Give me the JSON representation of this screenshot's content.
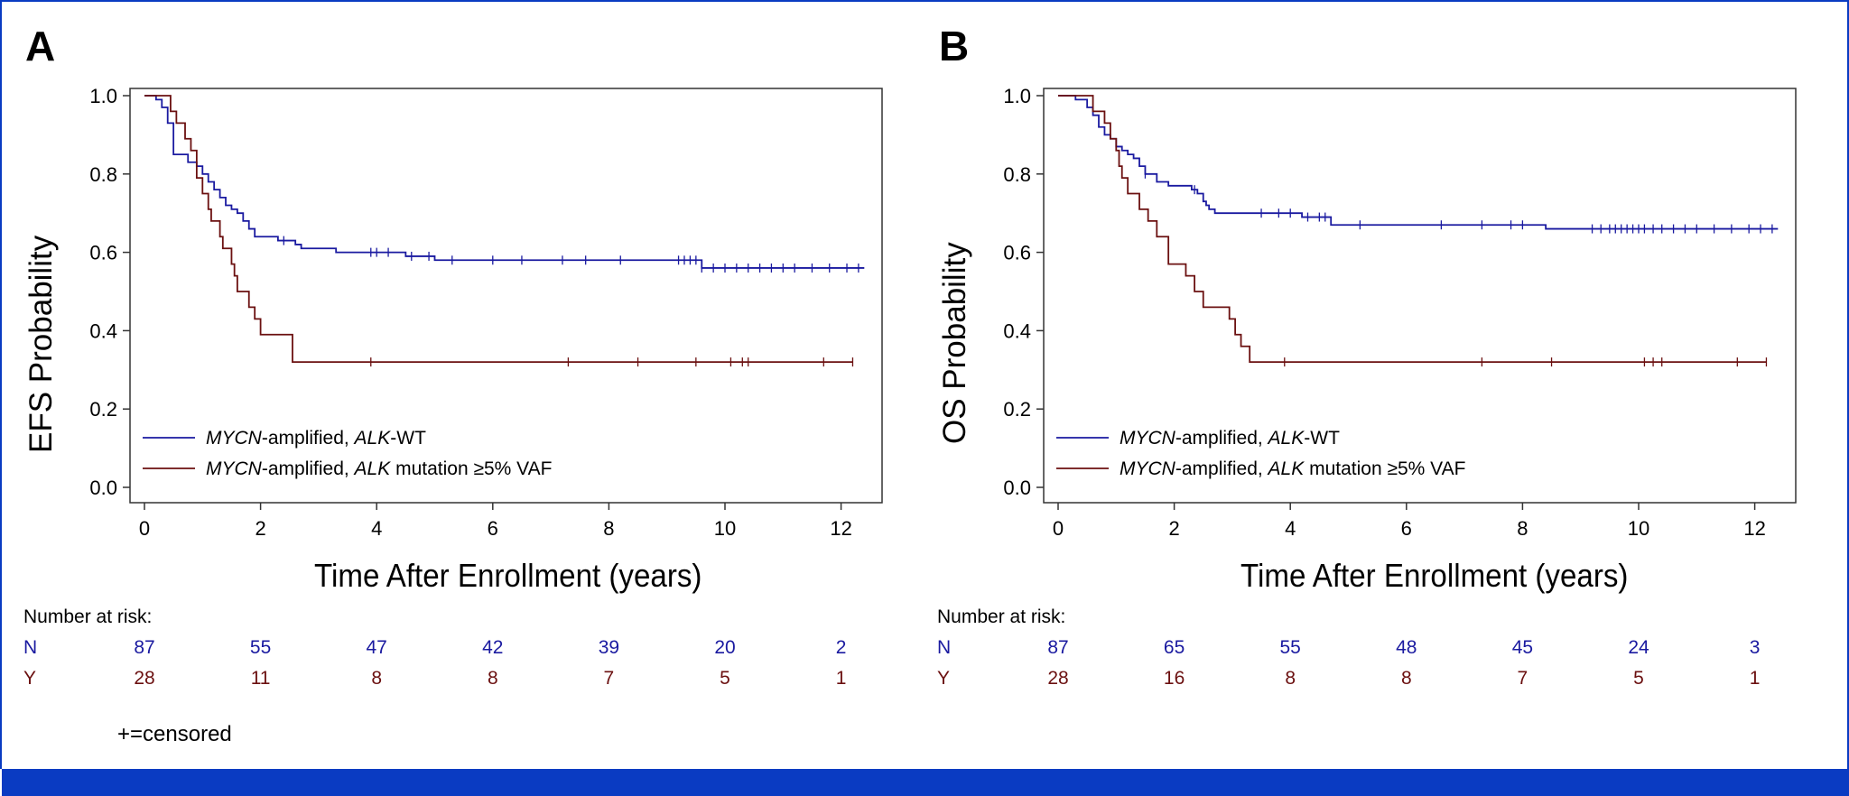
{
  "colors": {
    "border_blue": "#0a3bc2",
    "series_wt": "#1a1aa0",
    "series_mut": "#6b1010"
  },
  "censored_note": "+=censored",
  "chart_data": [
    {
      "type": "line",
      "panel_label": "A",
      "ylabel": "EFS Probability",
      "xlabel": "Time After Enrollment (years)",
      "xlim": [
        0,
        12.5
      ],
      "ylim": [
        0,
        1.0
      ],
      "xticks": [
        0,
        2,
        4,
        6,
        8,
        10,
        12
      ],
      "yticks": [
        "0.0",
        "0.2",
        "0.4",
        "0.6",
        "0.8",
        "1.0"
      ],
      "legend": [
        {
          "italic": "MYCN",
          "text1": "-amplified, ",
          "italic2": "ALK",
          "text2": "-WT",
          "color": "#1a1aa0"
        },
        {
          "italic": "MYCN",
          "text1": "-amplified, ",
          "italic2": "ALK",
          "text2": " mutation ≥5% VAF",
          "color": "#6b1010"
        }
      ],
      "series": [
        {
          "name": "MYCN-amplified, ALK-WT",
          "color": "#1a1aa0",
          "steps": [
            [
              0,
              1.0
            ],
            [
              0.2,
              0.99
            ],
            [
              0.3,
              0.97
            ],
            [
              0.4,
              0.93
            ],
            [
              0.5,
              0.85
            ],
            [
              0.75,
              0.83
            ],
            [
              0.9,
              0.82
            ],
            [
              1.0,
              0.8
            ],
            [
              1.1,
              0.78
            ],
            [
              1.2,
              0.76
            ],
            [
              1.3,
              0.74
            ],
            [
              1.4,
              0.72
            ],
            [
              1.5,
              0.71
            ],
            [
              1.6,
              0.7
            ],
            [
              1.7,
              0.68
            ],
            [
              1.8,
              0.66
            ],
            [
              1.9,
              0.64
            ],
            [
              2.3,
              0.63
            ],
            [
              2.6,
              0.62
            ],
            [
              2.7,
              0.61
            ],
            [
              3.3,
              0.6
            ],
            [
              4.5,
              0.59
            ],
            [
              5.0,
              0.58
            ],
            [
              9.6,
              0.56
            ],
            [
              12.4,
              0.56
            ]
          ],
          "censor_times": [
            2.4,
            3.9,
            4.0,
            4.2,
            4.6,
            4.9,
            5.3,
            6.0,
            6.5,
            7.2,
            7.6,
            8.2,
            9.2,
            9.3,
            9.4,
            9.5,
            9.6,
            9.8,
            10.0,
            10.2,
            10.4,
            10.6,
            10.8,
            11.0,
            11.2,
            11.5,
            11.8,
            12.1,
            12.3
          ]
        },
        {
          "name": "MYCN-amplified, ALK mutation ≥5% VAF",
          "color": "#6b1010",
          "steps": [
            [
              0,
              1.0
            ],
            [
              0.45,
              0.96
            ],
            [
              0.55,
              0.93
            ],
            [
              0.7,
              0.89
            ],
            [
              0.8,
              0.86
            ],
            [
              0.9,
              0.79
            ],
            [
              1.0,
              0.75
            ],
            [
              1.1,
              0.71
            ],
            [
              1.15,
              0.68
            ],
            [
              1.3,
              0.64
            ],
            [
              1.35,
              0.61
            ],
            [
              1.5,
              0.57
            ],
            [
              1.55,
              0.54
            ],
            [
              1.6,
              0.5
            ],
            [
              1.8,
              0.46
            ],
            [
              1.9,
              0.43
            ],
            [
              2.0,
              0.39
            ],
            [
              2.55,
              0.32
            ],
            [
              12.2,
              0.32
            ]
          ],
          "censor_times": [
            3.9,
            7.3,
            8.5,
            9.5,
            10.1,
            10.3,
            10.4,
            11.7,
            12.2
          ]
        }
      ],
      "risk_table": {
        "title": "Number at risk:",
        "times": [
          0,
          2,
          4,
          6,
          8,
          10,
          12
        ],
        "rows": [
          {
            "label": "N",
            "values": [
              "87",
              "55",
              "47",
              "42",
              "39",
              "20",
              "2"
            ]
          },
          {
            "label": "Y",
            "values": [
              "28",
              "11",
              "8",
              "8",
              "7",
              "5",
              "1"
            ]
          }
        ]
      }
    },
    {
      "type": "line",
      "panel_label": "B",
      "ylabel": "OS Probability",
      "xlabel": "Time After Enrollment (years)",
      "xlim": [
        0,
        12.5
      ],
      "ylim": [
        0,
        1.0
      ],
      "xticks": [
        0,
        2,
        4,
        6,
        8,
        10,
        12
      ],
      "yticks": [
        "0.0",
        "0.2",
        "0.4",
        "0.6",
        "0.8",
        "1.0"
      ],
      "legend": [
        {
          "italic": "MYCN",
          "text1": "-amplified, ",
          "italic2": "ALK",
          "text2": "-WT",
          "color": "#1a1aa0"
        },
        {
          "italic": "MYCN",
          "text1": "-amplified, ",
          "italic2": "ALK",
          "text2": " mutation ≥5% VAF",
          "color": "#6b1010"
        }
      ],
      "series": [
        {
          "name": "MYCN-amplified, ALK-WT",
          "color": "#1a1aa0",
          "steps": [
            [
              0,
              1.0
            ],
            [
              0.3,
              0.99
            ],
            [
              0.5,
              0.97
            ],
            [
              0.6,
              0.95
            ],
            [
              0.7,
              0.92
            ],
            [
              0.8,
              0.9
            ],
            [
              0.9,
              0.89
            ],
            [
              1.0,
              0.87
            ],
            [
              1.1,
              0.86
            ],
            [
              1.2,
              0.85
            ],
            [
              1.3,
              0.84
            ],
            [
              1.4,
              0.82
            ],
            [
              1.5,
              0.8
            ],
            [
              1.7,
              0.78
            ],
            [
              1.9,
              0.77
            ],
            [
              2.3,
              0.76
            ],
            [
              2.4,
              0.75
            ],
            [
              2.5,
              0.73
            ],
            [
              2.55,
              0.72
            ],
            [
              2.6,
              0.71
            ],
            [
              2.7,
              0.7
            ],
            [
              4.2,
              0.69
            ],
            [
              4.7,
              0.67
            ],
            [
              8.4,
              0.66
            ],
            [
              12.4,
              0.66
            ]
          ],
          "censor_times": [
            1.5,
            2.35,
            3.5,
            3.8,
            4.0,
            4.3,
            4.5,
            4.6,
            5.2,
            6.6,
            7.3,
            7.8,
            8.0,
            9.2,
            9.35,
            9.5,
            9.6,
            9.7,
            9.8,
            9.9,
            10.0,
            10.1,
            10.25,
            10.4,
            10.6,
            10.8,
            11.0,
            11.3,
            11.6,
            11.9,
            12.1,
            12.3
          ]
        },
        {
          "name": "MYCN-amplified, ALK mutation ≥5% VAF",
          "color": "#6b1010",
          "steps": [
            [
              0,
              1.0
            ],
            [
              0.6,
              0.96
            ],
            [
              0.8,
              0.93
            ],
            [
              0.9,
              0.89
            ],
            [
              1.0,
              0.86
            ],
            [
              1.05,
              0.82
            ],
            [
              1.1,
              0.79
            ],
            [
              1.2,
              0.75
            ],
            [
              1.4,
              0.71
            ],
            [
              1.55,
              0.68
            ],
            [
              1.7,
              0.64
            ],
            [
              1.9,
              0.57
            ],
            [
              2.2,
              0.54
            ],
            [
              2.35,
              0.5
            ],
            [
              2.5,
              0.46
            ],
            [
              2.95,
              0.43
            ],
            [
              3.05,
              0.39
            ],
            [
              3.15,
              0.36
            ],
            [
              3.3,
              0.32
            ],
            [
              12.2,
              0.32
            ]
          ],
          "censor_times": [
            3.9,
            7.3,
            8.5,
            10.1,
            10.25,
            10.4,
            11.7,
            12.2
          ]
        }
      ],
      "risk_table": {
        "title": "Number at risk:",
        "times": [
          0,
          2,
          4,
          6,
          8,
          10,
          12
        ],
        "rows": [
          {
            "label": "N",
            "values": [
              "87",
              "65",
              "55",
              "48",
              "45",
              "24",
              "3"
            ]
          },
          {
            "label": "Y",
            "values": [
              "28",
              "16",
              "8",
              "8",
              "7",
              "5",
              "1"
            ]
          }
        ]
      }
    }
  ]
}
